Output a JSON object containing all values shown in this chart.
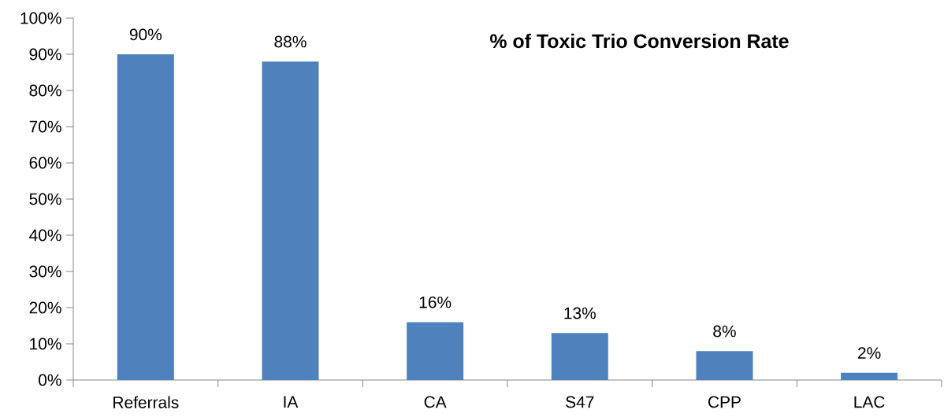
{
  "chart_data": {
    "type": "bar",
    "title": "% of Toxic Trio Conversion Rate",
    "categories": [
      "Referrals",
      "IA",
      "CA",
      "S47",
      "CPP",
      "LAC"
    ],
    "values": [
      90,
      88,
      16,
      13,
      8,
      2
    ],
    "value_labels": [
      "90%",
      "88%",
      "16%",
      "13%",
      "8%",
      "2%"
    ],
    "color": "#4f81bd",
    "ylim": [
      0,
      100
    ],
    "yticks": [
      {
        "value": 0,
        "label": "0%"
      },
      {
        "value": 10,
        "label": "10%"
      },
      {
        "value": 20,
        "label": "20%"
      },
      {
        "value": 30,
        "label": "30%"
      },
      {
        "value": 40,
        "label": "40%"
      },
      {
        "value": 50,
        "label": "50%"
      },
      {
        "value": 60,
        "label": "60%"
      },
      {
        "value": 70,
        "label": "70%"
      },
      {
        "value": 80,
        "label": "80%"
      },
      {
        "value": 90,
        "label": "90%"
      },
      {
        "value": 100,
        "label": "100%"
      }
    ]
  }
}
